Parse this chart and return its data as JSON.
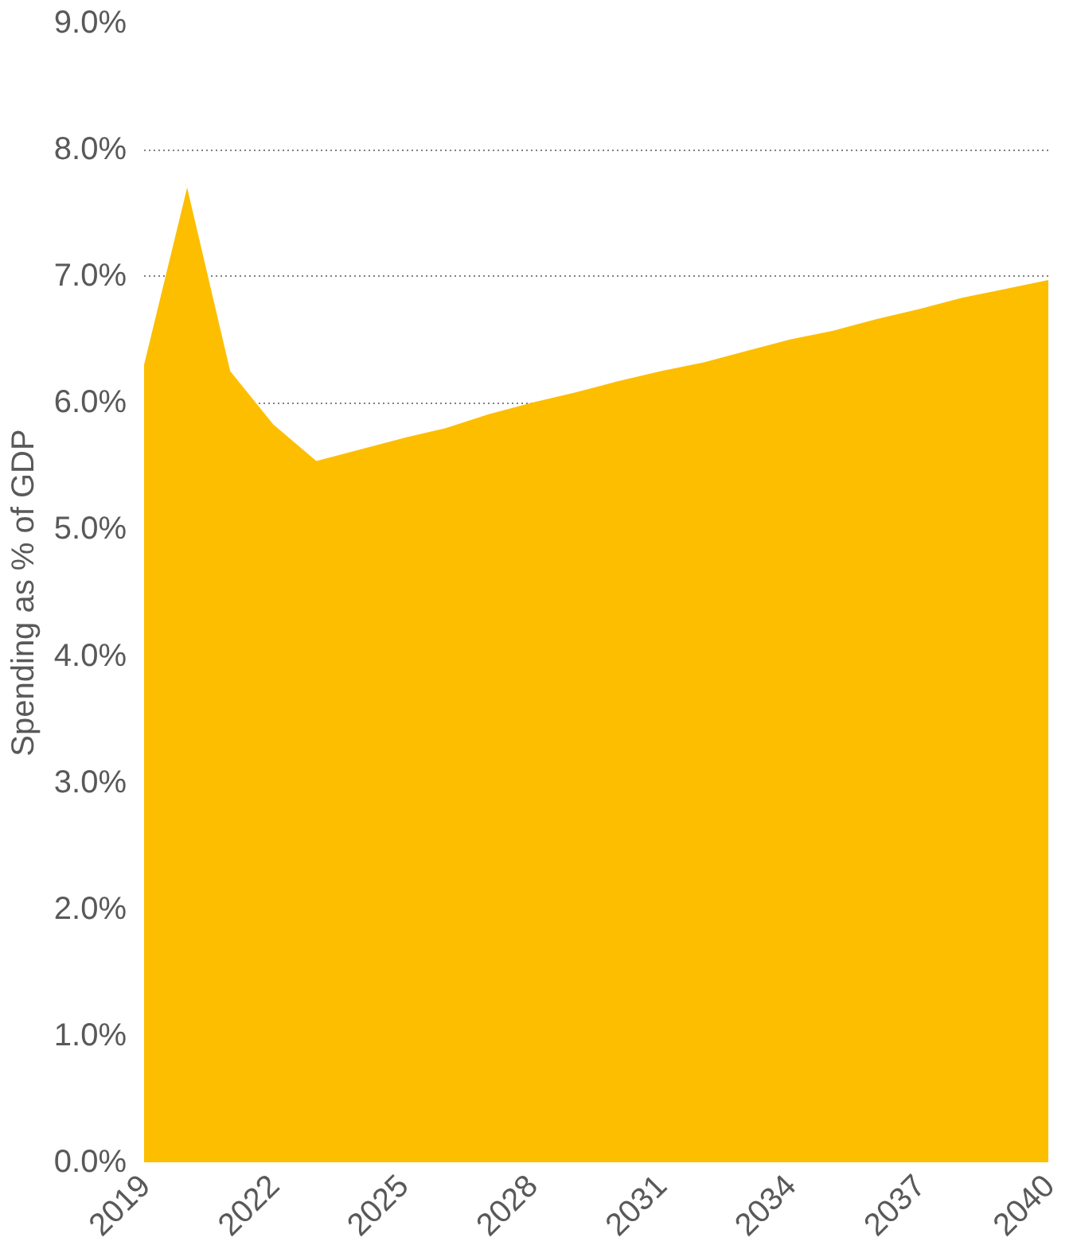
{
  "chart_data": {
    "type": "area",
    "ylabel": "Spending as % of GDP",
    "x": [
      2019,
      2020,
      2021,
      2022,
      2023,
      2024,
      2025,
      2026,
      2027,
      2028,
      2029,
      2030,
      2031,
      2032,
      2033,
      2034,
      2035,
      2036,
      2037,
      2038,
      2039,
      2040
    ],
    "series": [
      {
        "color": "#fdbe00",
        "values": [
          6.3,
          7.7,
          6.25,
          5.83,
          5.54,
          5.63,
          5.72,
          5.8,
          5.91,
          6.0,
          6.08,
          6.17,
          6.25,
          6.32,
          6.41,
          6.5,
          6.57,
          6.66,
          6.74,
          6.83,
          6.9,
          6.97
        ]
      }
    ],
    "xlim": [
      2019,
      2040
    ],
    "xticks": [
      2019,
      2022,
      2025,
      2028,
      2031,
      2034,
      2037,
      2040
    ],
    "ylim": [
      0,
      9
    ],
    "yticks": [
      {
        "value": 0,
        "label": "0.0%"
      },
      {
        "value": 1,
        "label": "1.0%"
      },
      {
        "value": 2,
        "label": "2.0%"
      },
      {
        "value": 3,
        "label": "3.0%"
      },
      {
        "value": 4,
        "label": "4.0%"
      },
      {
        "value": 5,
        "label": "5.0%"
      },
      {
        "value": 6,
        "label": "6.0%"
      },
      {
        "value": 7,
        "label": "7.0%"
      },
      {
        "value": 8,
        "label": "8.0%"
      },
      {
        "value": 9,
        "label": "9.0%"
      }
    ],
    "grid": "y"
  }
}
